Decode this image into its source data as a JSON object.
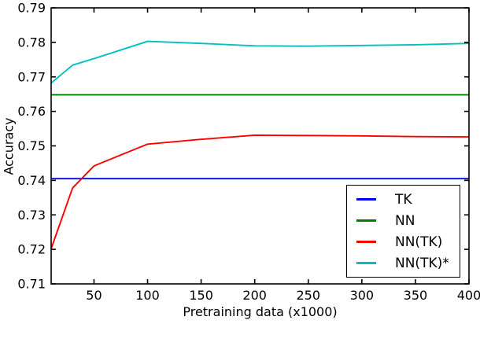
{
  "figure": {
    "background": "#ffffff",
    "axis_color": "#000000"
  },
  "chart_data": {
    "type": "line",
    "title": "",
    "xlabel": "Pretraining data (x1000)",
    "ylabel": "Accuracy",
    "xlim": [
      10,
      400
    ],
    "ylim": [
      0.71,
      0.79
    ],
    "x_ticks": [
      50,
      100,
      150,
      200,
      250,
      300,
      350,
      400
    ],
    "y_ticks": [
      0.71,
      0.72,
      0.73,
      0.74,
      0.75,
      0.76,
      0.77,
      0.78,
      0.79
    ],
    "y_tick_decimals": 2,
    "grid": false,
    "tick_direction": "in",
    "legend_position": "lower-right",
    "series": [
      {
        "name": "TK",
        "color": "#0000ff",
        "x": [
          10,
          400
        ],
        "y": [
          0.7405,
          0.7405
        ]
      },
      {
        "name": "NN",
        "color": "#007f00",
        "x": [
          10,
          400
        ],
        "y": [
          0.7648,
          0.7648
        ]
      },
      {
        "name": "NN(TK)",
        "color": "#ff0000",
        "x": [
          10,
          30,
          50,
          100,
          150,
          200,
          250,
          300,
          350,
          400
        ],
        "y": [
          0.7202,
          0.7378,
          0.7442,
          0.7505,
          0.7519,
          0.7531,
          0.753,
          0.7529,
          0.7527,
          0.7526
        ]
      },
      {
        "name": "NN(TK)*",
        "color": "#00bfbf",
        "x": [
          10,
          30,
          50,
          100,
          150,
          200,
          250,
          300,
          350,
          400
        ],
        "y": [
          0.7682,
          0.7734,
          0.7753,
          0.7803,
          0.7797,
          0.779,
          0.7789,
          0.7791,
          0.7793,
          0.7797
        ]
      }
    ]
  }
}
